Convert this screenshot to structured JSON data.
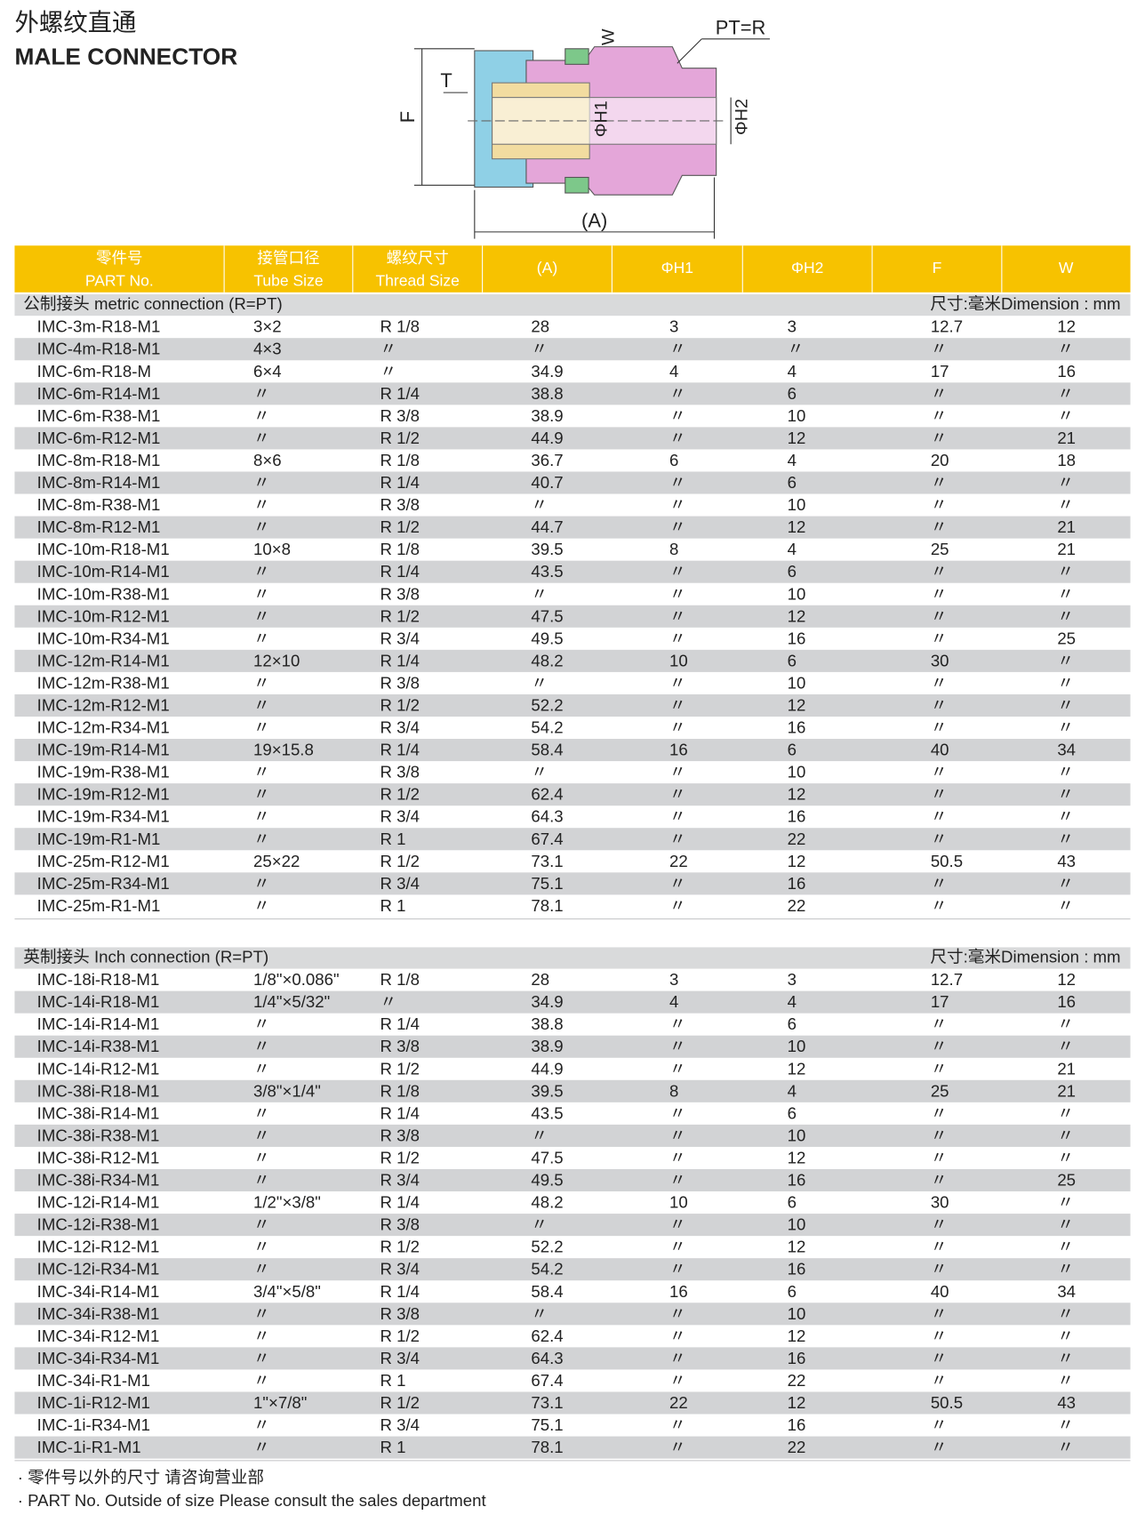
{
  "header": {
    "title_zh": "外螺纹直通",
    "title_en": "MALE CONNECTOR"
  },
  "diagram": {
    "labels": {
      "w": "W",
      "pt": "PT=R",
      "t": "T",
      "f": "F",
      "h1": "ΦH1",
      "h2": "ΦH2",
      "a": "(A)"
    }
  },
  "table": {
    "columns": [
      {
        "zh": "零件号",
        "en": "PART No."
      },
      {
        "zh": "接管口径",
        "en": "Tube Size"
      },
      {
        "zh": "螺纹尺寸",
        "en": "Thread Size"
      },
      {
        "en": "(A)"
      },
      {
        "en": "ΦH1"
      },
      {
        "en": "ΦH2"
      },
      {
        "en": "F"
      },
      {
        "en": "W"
      }
    ]
  },
  "sections": [
    {
      "caption": "公制接头 metric connection (R=PT)",
      "unit": "尺寸:毫米Dimension : mm",
      "rows": [
        [
          "IMC-3m-R18-M1",
          "3×2",
          "R 1/8",
          "28",
          "3",
          "3",
          "12.7",
          "12"
        ],
        [
          "IMC-4m-R18-M1",
          "4×3",
          "〃",
          "〃",
          "〃",
          "〃",
          "〃",
          "〃"
        ],
        [
          "IMC-6m-R18-M",
          "6×4",
          "〃",
          "34.9",
          "4",
          "4",
          "17",
          "16"
        ],
        [
          "IMC-6m-R14-M1",
          "〃",
          "R 1/4",
          "38.8",
          "〃",
          "6",
          "〃",
          "〃"
        ],
        [
          "IMC-6m-R38-M1",
          "〃",
          "R 3/8",
          "38.9",
          "〃",
          "10",
          "〃",
          "〃"
        ],
        [
          "IMC-6m-R12-M1",
          "〃",
          "R 1/2",
          "44.9",
          "〃",
          "12",
          "〃",
          "21"
        ],
        [
          "IMC-8m-R18-M1",
          "8×6",
          "R 1/8",
          "36.7",
          "6",
          "4",
          "20",
          "18"
        ],
        [
          "IMC-8m-R14-M1",
          "〃",
          "R 1/4",
          "40.7",
          "〃",
          "6",
          "〃",
          "〃"
        ],
        [
          "IMC-8m-R38-M1",
          "〃",
          "R 3/8",
          "〃",
          "〃",
          "10",
          "〃",
          "〃"
        ],
        [
          "IMC-8m-R12-M1",
          "〃",
          "R 1/2",
          "44.7",
          "〃",
          "12",
          "〃",
          "21"
        ],
        [
          "IMC-10m-R18-M1",
          "10×8",
          "R 1/8",
          "39.5",
          "8",
          "4",
          "25",
          "21"
        ],
        [
          "IMC-10m-R14-M1",
          "〃",
          "R 1/4",
          "43.5",
          "〃",
          "6",
          "〃",
          "〃"
        ],
        [
          "IMC-10m-R38-M1",
          "〃",
          "R 3/8",
          "〃",
          "〃",
          "10",
          "〃",
          "〃"
        ],
        [
          "IMC-10m-R12-M1",
          "〃",
          "R 1/2",
          "47.5",
          "〃",
          "12",
          "〃",
          "〃"
        ],
        [
          "IMC-10m-R34-M1",
          "〃",
          "R 3/4",
          "49.5",
          "〃",
          "16",
          "〃",
          "25"
        ],
        [
          "IMC-12m-R14-M1",
          "12×10",
          "R 1/4",
          "48.2",
          "10",
          "6",
          "30",
          "〃"
        ],
        [
          "IMC-12m-R38-M1",
          "〃",
          "R 3/8",
          "〃",
          "〃",
          "10",
          "〃",
          "〃"
        ],
        [
          "IMC-12m-R12-M1",
          "〃",
          "R 1/2",
          "52.2",
          "〃",
          "12",
          "〃",
          "〃"
        ],
        [
          "IMC-12m-R34-M1",
          "〃",
          "R 3/4",
          "54.2",
          "〃",
          "16",
          "〃",
          "〃"
        ],
        [
          "IMC-19m-R14-M1",
          "19×15.8",
          "R 1/4",
          "58.4",
          "16",
          "6",
          "40",
          "34"
        ],
        [
          "IMC-19m-R38-M1",
          "〃",
          "R 3/8",
          "〃",
          "〃",
          "10",
          "〃",
          "〃"
        ],
        [
          "IMC-19m-R12-M1",
          "〃",
          "R 1/2",
          "62.4",
          "〃",
          "12",
          "〃",
          "〃"
        ],
        [
          "IMC-19m-R34-M1",
          "〃",
          "R 3/4",
          "64.3",
          "〃",
          "16",
          "〃",
          "〃"
        ],
        [
          "IMC-19m-R1-M1",
          "〃",
          "R 1",
          "67.4",
          "〃",
          "22",
          "〃",
          "〃"
        ],
        [
          "IMC-25m-R12-M1",
          "25×22",
          "R 1/2",
          "73.1",
          "22",
          "12",
          "50.5",
          "43"
        ],
        [
          "IMC-25m-R34-M1",
          "〃",
          "R 3/4",
          "75.1",
          "〃",
          "16",
          "〃",
          "〃"
        ],
        [
          "IMC-25m-R1-M1",
          "〃",
          "R 1",
          "78.1",
          "〃",
          "22",
          "〃",
          "〃"
        ]
      ]
    },
    {
      "caption": "英制接头 Inch connection (R=PT)",
      "unit": "尺寸:毫米Dimension : mm",
      "rows": [
        [
          "IMC-18i-R18-M1",
          "1/8\"×0.086\"",
          "R 1/8",
          "28",
          "3",
          "3",
          "12.7",
          "12"
        ],
        [
          "IMC-14i-R18-M1",
          "1/4\"×5/32\"",
          "〃",
          "34.9",
          "4",
          "4",
          "17",
          "16"
        ],
        [
          "IMC-14i-R14-M1",
          "〃",
          "R 1/4",
          "38.8",
          "〃",
          "6",
          "〃",
          "〃"
        ],
        [
          "IMC-14i-R38-M1",
          "〃",
          "R 3/8",
          "38.9",
          "〃",
          "10",
          "〃",
          "〃"
        ],
        [
          "IMC-14i-R12-M1",
          "〃",
          "R 1/2",
          "44.9",
          "〃",
          "12",
          "〃",
          "21"
        ],
        [
          "IMC-38i-R18-M1",
          "3/8\"×1/4\"",
          "R 1/8",
          "39.5",
          "8",
          "4",
          "25",
          "21"
        ],
        [
          "IMC-38i-R14-M1",
          "〃",
          "R 1/4",
          "43.5",
          "〃",
          "6",
          "〃",
          "〃"
        ],
        [
          "IMC-38i-R38-M1",
          "〃",
          "R 3/8",
          "〃",
          "〃",
          "10",
          "〃",
          "〃"
        ],
        [
          "IMC-38i-R12-M1",
          "〃",
          "R 1/2",
          "47.5",
          "〃",
          "12",
          "〃",
          "〃"
        ],
        [
          "IMC-38i-R34-M1",
          "〃",
          "R 3/4",
          "49.5",
          "〃",
          "16",
          "〃",
          "25"
        ],
        [
          "IMC-12i-R14-M1",
          "1/2\"×3/8\"",
          "R 1/4",
          "48.2",
          "10",
          "6",
          "30",
          "〃"
        ],
        [
          "IMC-12i-R38-M1",
          "〃",
          "R 3/8",
          "〃",
          "〃",
          "10",
          "〃",
          "〃"
        ],
        [
          "IMC-12i-R12-M1",
          "〃",
          "R 1/2",
          "52.2",
          "〃",
          "12",
          "〃",
          "〃"
        ],
        [
          "IMC-12i-R34-M1",
          "〃",
          "R 3/4",
          "54.2",
          "〃",
          "16",
          "〃",
          "〃"
        ],
        [
          "IMC-34i-R14-M1",
          "3/4\"×5/8\"",
          "R 1/4",
          "58.4",
          "16",
          "6",
          "40",
          "34"
        ],
        [
          "IMC-34i-R38-M1",
          "〃",
          "R 3/8",
          "〃",
          "〃",
          "10",
          "〃",
          "〃"
        ],
        [
          "IMC-34i-R12-M1",
          "〃",
          "R 1/2",
          "62.4",
          "〃",
          "12",
          "〃",
          "〃"
        ],
        [
          "IMC-34i-R34-M1",
          "〃",
          "R 3/4",
          "64.3",
          "〃",
          "16",
          "〃",
          "〃"
        ],
        [
          "IMC-34i-R1-M1",
          "〃",
          "R 1",
          "67.4",
          "〃",
          "22",
          "〃",
          "〃"
        ],
        [
          "IMC-1i-R12-M1",
          "1\"×7/8\"",
          "R 1/2",
          "73.1",
          "22",
          "12",
          "50.5",
          "43"
        ],
        [
          "IMC-1i-R34-M1",
          "〃",
          "R 3/4",
          "75.1",
          "〃",
          "16",
          "〃",
          "〃"
        ],
        [
          "IMC-1i-R1-M1",
          "〃",
          "R 1",
          "78.1",
          "〃",
          "22",
          "〃",
          "〃"
        ]
      ]
    }
  ],
  "footnotes": [
    "· 零件号以外的尺寸 请咨询营业部",
    "· PART No. Outside of size Please consult the sales department"
  ]
}
